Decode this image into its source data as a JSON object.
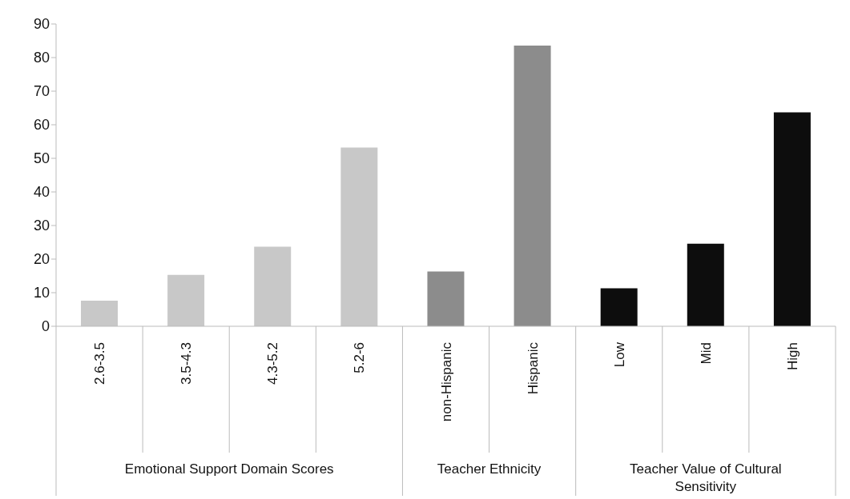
{
  "chart_data": {
    "type": "bar",
    "categories": [
      "2.6-3.5",
      "3.5-4.3",
      "4.3-5.2",
      "5.2-6",
      "non-Hispanic",
      "Hispanic",
      "Low",
      "Mid",
      "High"
    ],
    "values": [
      7.6,
      15.3,
      23.7,
      53.2,
      16.3,
      83.6,
      11.3,
      24.6,
      63.7
    ],
    "colors": [
      "#c8c8c8",
      "#c8c8c8",
      "#c8c8c8",
      "#c8c8c8",
      "#8c8c8c",
      "#8c8c8c",
      "#0d0d0d",
      "#0d0d0d",
      "#0d0d0d"
    ],
    "ylim": [
      0,
      90
    ],
    "yticks": [
      0,
      10,
      20,
      30,
      40,
      50,
      60,
      70,
      80,
      90
    ],
    "grid": false,
    "legend": false,
    "annotations": [
      "Emotional Support Domain Scores",
      "Teacher Ethnicity",
      "Teacher Value of Cultural Sensitivity"
    ]
  }
}
